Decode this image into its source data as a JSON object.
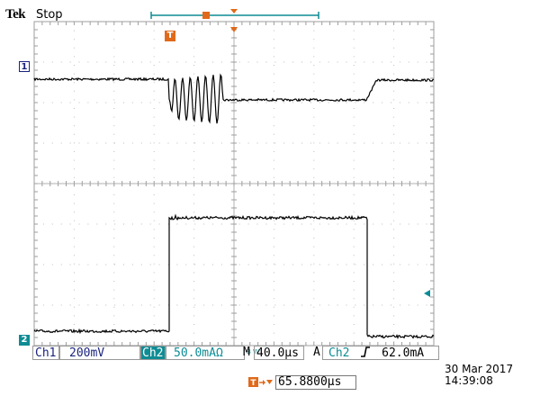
{
  "header": {
    "brand": "Tek",
    "state": "Stop"
  },
  "markers": {
    "ch1": "1",
    "ch2": "2",
    "trigger": "T"
  },
  "status_bar": {
    "ch1_label": "Ch1",
    "ch1_scale": "200mV",
    "bw_small": "B W",
    "ch2_label": "Ch2",
    "ch2_scale": "50.0mAΩ",
    "timebase_prefix": "M",
    "timebase": "40.0µs",
    "trigger_mode": "A",
    "trigger_source": "Ch2",
    "trigger_slope_icon": "rising-edge-icon",
    "trigger_level": "62.0mA"
  },
  "timestamp": {
    "date": "30 Mar  2017",
    "time": "14:39:08"
  },
  "trigger_position": {
    "value": "65.8800µs"
  },
  "colors": {
    "ch1": "#1a237e",
    "ch2": "#0d8c94",
    "trigger": "#e06a1a",
    "grid": "#9e9e9e",
    "trace": "#000000"
  }
}
